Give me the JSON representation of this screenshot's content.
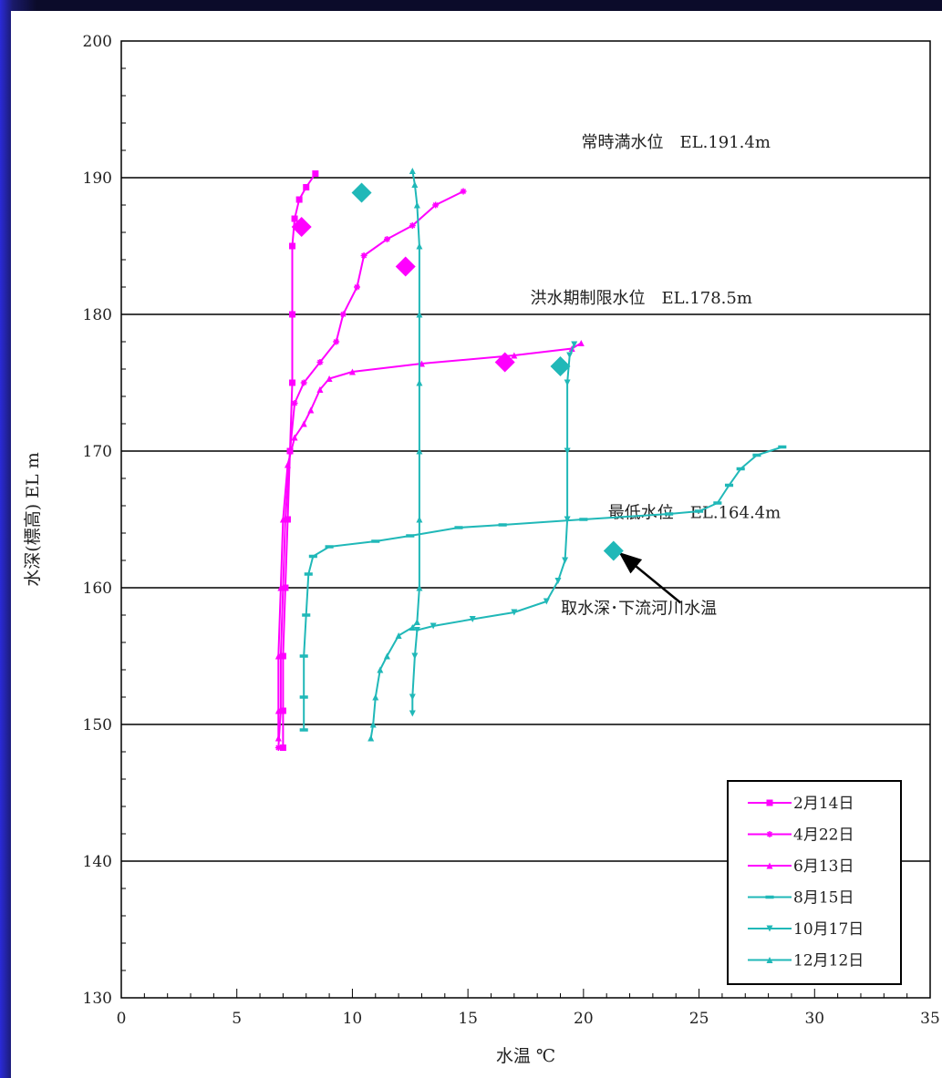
{
  "chart_data": {
    "type": "line",
    "xlabel": "水温 ℃",
    "ylabel": "水深(標高) EL m",
    "xlim": [
      0,
      35
    ],
    "ylim": [
      130,
      200
    ],
    "xticks": [
      0,
      5,
      10,
      15,
      20,
      25,
      30,
      35
    ],
    "yticks": [
      130,
      140,
      150,
      160,
      170,
      180,
      190,
      200
    ],
    "grid_y": [
      140,
      150,
      160,
      170,
      180,
      190
    ],
    "legend_position": "bottom-right",
    "annotations": [
      {
        "text": "常時満水位　EL.191.4m",
        "x": 24,
        "y": 192.2
      },
      {
        "text": "洪水期制限水位　EL.178.5m",
        "x": 22.5,
        "y": 180.8
      },
      {
        "text": "最低水位　EL.164.4m",
        "x": 24.8,
        "y": 165.1
      },
      {
        "text": "取水深･下流河川水温",
        "x": 22.4,
        "y": 158.1
      }
    ],
    "arrow": {
      "from": [
        24.2,
        158.9
      ],
      "to": [
        21.6,
        162.5
      ]
    },
    "series": [
      {
        "name": "2月14日",
        "color": "#ff00ff",
        "marker": "square",
        "points": [
          [
            8.4,
            190.3
          ],
          [
            8.0,
            189.3
          ],
          [
            7.7,
            188.4
          ],
          [
            7.5,
            187.0
          ],
          [
            7.4,
            185.0
          ],
          [
            7.4,
            180.0
          ],
          [
            7.4,
            175.0
          ],
          [
            7.3,
            170.0
          ],
          [
            7.2,
            165.0
          ],
          [
            7.1,
            160.0
          ],
          [
            7.0,
            155.0
          ],
          [
            7.0,
            151.0
          ],
          [
            7.0,
            148.3
          ]
        ]
      },
      {
        "name": "4月22日",
        "color": "#ff00ff",
        "marker": "star",
        "points": [
          [
            14.8,
            189.0
          ],
          [
            13.6,
            188.0
          ],
          [
            12.6,
            186.5
          ],
          [
            11.5,
            185.5
          ],
          [
            10.5,
            184.3
          ],
          [
            10.2,
            182.0
          ],
          [
            9.6,
            180.0
          ],
          [
            9.3,
            178.0
          ],
          [
            8.6,
            176.5
          ],
          [
            7.9,
            175.0
          ],
          [
            7.5,
            173.5
          ],
          [
            7.3,
            170.0
          ],
          [
            7.1,
            165.0
          ],
          [
            7.0,
            160.0
          ],
          [
            6.9,
            155.0
          ],
          [
            6.9,
            151.0
          ],
          [
            6.8,
            148.3
          ]
        ]
      },
      {
        "name": "6月13日",
        "color": "#ff00ff",
        "marker": "triangle",
        "points": [
          [
            19.9,
            177.9
          ],
          [
            19.5,
            177.5
          ],
          [
            17.0,
            177.0
          ],
          [
            13.0,
            176.4
          ],
          [
            10.0,
            175.8
          ],
          [
            9.0,
            175.3
          ],
          [
            8.6,
            174.5
          ],
          [
            8.2,
            173.0
          ],
          [
            7.9,
            172.0
          ],
          [
            7.5,
            171.0
          ],
          [
            7.2,
            169.0
          ],
          [
            7.0,
            165.0
          ],
          [
            6.9,
            160.0
          ],
          [
            6.8,
            155.0
          ],
          [
            6.8,
            151.0
          ],
          [
            6.8,
            149.0
          ]
        ]
      },
      {
        "name": "8月15日",
        "color": "#20b8b8",
        "marker": "dash",
        "points": [
          [
            28.6,
            170.3
          ],
          [
            27.5,
            169.7
          ],
          [
            26.8,
            168.7
          ],
          [
            26.3,
            167.5
          ],
          [
            25.8,
            166.2
          ],
          [
            25.0,
            165.6
          ],
          [
            23.7,
            165.4
          ],
          [
            20.0,
            165.0
          ],
          [
            16.5,
            164.6
          ],
          [
            14.6,
            164.4
          ],
          [
            12.5,
            163.8
          ],
          [
            11.0,
            163.4
          ],
          [
            9.0,
            163.0
          ],
          [
            8.3,
            162.3
          ],
          [
            8.1,
            161.0
          ],
          [
            8.0,
            158.0
          ],
          [
            7.9,
            155.0
          ],
          [
            7.9,
            152.0
          ],
          [
            7.9,
            149.6
          ]
        ]
      },
      {
        "name": "10月17日",
        "color": "#20b8b8",
        "marker": "triangle-down",
        "points": [
          [
            19.6,
            177.8
          ],
          [
            19.4,
            177.0
          ],
          [
            19.3,
            175.0
          ],
          [
            19.3,
            170.0
          ],
          [
            19.3,
            165.0
          ],
          [
            19.2,
            162.0
          ],
          [
            18.9,
            160.5
          ],
          [
            18.4,
            159.0
          ],
          [
            17.0,
            158.2
          ],
          [
            15.2,
            157.7
          ],
          [
            13.5,
            157.2
          ],
          [
            12.8,
            156.9
          ],
          [
            12.7,
            155.0
          ],
          [
            12.6,
            152.0
          ],
          [
            12.6,
            150.8
          ]
        ]
      },
      {
        "name": "12月12日",
        "color": "#20b8b8",
        "marker": "triangle",
        "points": [
          [
            12.6,
            190.5
          ],
          [
            12.7,
            189.5
          ],
          [
            12.8,
            188.0
          ],
          [
            12.9,
            185.0
          ],
          [
            12.9,
            180.0
          ],
          [
            12.9,
            175.0
          ],
          [
            12.9,
            170.0
          ],
          [
            12.9,
            165.0
          ],
          [
            12.9,
            160.0
          ],
          [
            12.8,
            157.5
          ],
          [
            12.6,
            157.1
          ],
          [
            12.0,
            156.5
          ],
          [
            11.5,
            155.0
          ],
          [
            11.2,
            154.0
          ],
          [
            11.0,
            152.0
          ],
          [
            10.9,
            150.0
          ],
          [
            10.8,
            149.0
          ]
        ]
      }
    ],
    "intake_points": [
      {
        "color": "#ff00ff",
        "x": 7.8,
        "y": 186.4
      },
      {
        "color": "#ff00ff",
        "x": 12.3,
        "y": 183.5
      },
      {
        "color": "#ff00ff",
        "x": 16.6,
        "y": 176.5
      },
      {
        "color": "#20b8b8",
        "x": 10.4,
        "y": 188.9
      },
      {
        "color": "#20b8b8",
        "x": 19.0,
        "y": 176.2
      },
      {
        "color": "#20b8b8",
        "x": 21.3,
        "y": 162.7
      }
    ]
  }
}
